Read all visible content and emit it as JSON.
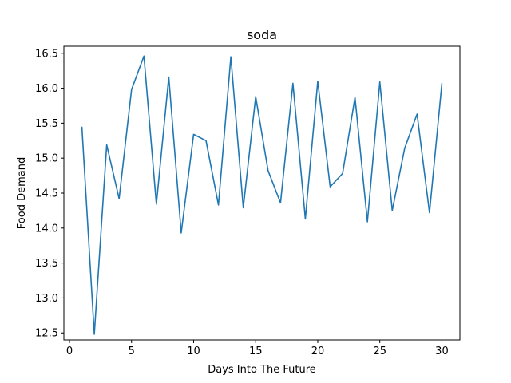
{
  "chart_data": {
    "type": "line",
    "title": "soda",
    "xlabel": "Days Into The Future",
    "ylabel": "Food Demand",
    "xlim": [
      -0.45,
      31.45
    ],
    "ylim": [
      12.4,
      16.6
    ],
    "xticks": [
      0,
      5,
      10,
      15,
      20,
      25,
      30
    ],
    "yticks": [
      12.5,
      13.0,
      13.5,
      14.0,
      14.5,
      15.0,
      15.5,
      16.0,
      16.5
    ],
    "xtick_labels": [
      "0",
      "5",
      "10",
      "15",
      "20",
      "25",
      "30"
    ],
    "ytick_labels": [
      "12.5",
      "13.0",
      "13.5",
      "14.0",
      "14.5",
      "15.0",
      "15.5",
      "16.0",
      "16.5"
    ],
    "grid": false,
    "color": "#1f77b4",
    "x": [
      1,
      2,
      3,
      4,
      5,
      6,
      7,
      8,
      9,
      10,
      11,
      12,
      13,
      14,
      15,
      16,
      17,
      18,
      19,
      20,
      21,
      22,
      23,
      24,
      25,
      26,
      27,
      28,
      29,
      30
    ],
    "y": [
      15.45,
      12.48,
      15.19,
      14.42,
      15.98,
      16.46,
      14.34,
      16.16,
      13.93,
      15.34,
      15.25,
      14.33,
      16.45,
      14.29,
      15.88,
      14.82,
      14.36,
      16.07,
      14.13,
      16.1,
      14.59,
      14.78,
      15.87,
      14.09,
      16.09,
      14.25,
      15.14,
      15.63,
      14.22,
      16.07
    ]
  }
}
